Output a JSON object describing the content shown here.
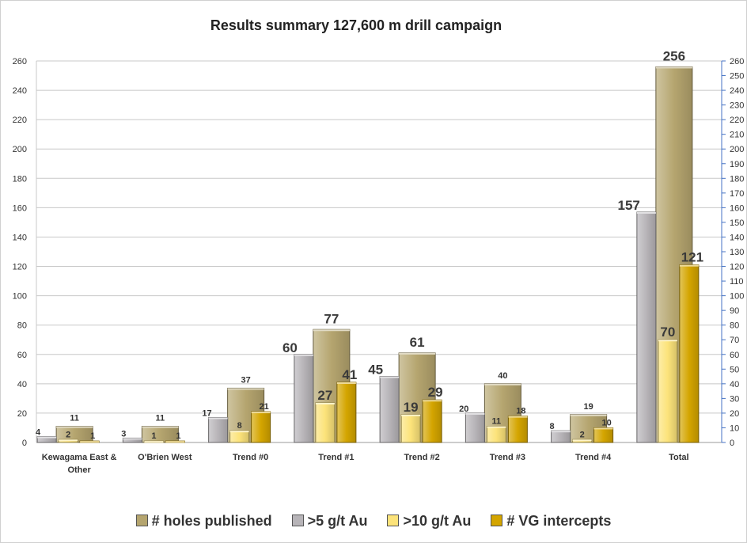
{
  "chart_data": {
    "type": "bar",
    "title": "Results summary 127,600 m drill campaign",
    "categories": [
      "Kewagama East & Other",
      "O'Brien West",
      "Trend #0",
      "Trend #1",
      "Trend #2",
      "Trend #3",
      "Trend #4",
      "Total"
    ],
    "series": [
      {
        "name": "# holes published",
        "values": [
          11,
          11,
          37,
          77,
          61,
          40,
          19,
          256
        ],
        "color": "#b5a56f"
      },
      {
        "name": ">5 g/t Au",
        "values": [
          4,
          3,
          17,
          60,
          45,
          20,
          8,
          157
        ],
        "color": "#b7b4b8"
      },
      {
        "name": ">10 g/t Au",
        "values": [
          2,
          1,
          8,
          27,
          19,
          11,
          2,
          70
        ],
        "color": "#fce37a"
      },
      {
        "name": "# VG intercepts",
        "values": [
          1,
          1,
          21,
          41,
          29,
          18,
          10,
          121
        ],
        "color": "#d4a500"
      }
    ],
    "ylim": [
      0,
      260
    ],
    "y_ticks_left": [
      0,
      20,
      40,
      60,
      80,
      100,
      120,
      140,
      160,
      180,
      200,
      220,
      240,
      260
    ],
    "y_ticks_right": [
      0,
      10,
      20,
      30,
      40,
      50,
      60,
      70,
      80,
      90,
      100,
      110,
      120,
      130,
      140,
      150,
      160,
      170,
      180,
      190,
      200,
      210,
      220,
      230,
      240,
      250,
      260
    ],
    "grid": true,
    "legend": "bottom"
  }
}
